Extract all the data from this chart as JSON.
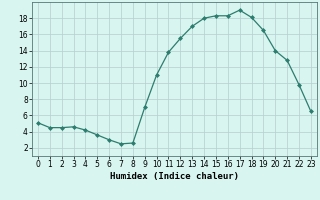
{
  "x": [
    0,
    1,
    2,
    3,
    4,
    5,
    6,
    7,
    8,
    9,
    10,
    11,
    12,
    13,
    14,
    15,
    16,
    17,
    18,
    19,
    20,
    21,
    22,
    23
  ],
  "y": [
    5.1,
    4.5,
    4.5,
    4.6,
    4.2,
    3.6,
    3.0,
    2.5,
    2.6,
    7.0,
    11.0,
    13.8,
    15.5,
    17.0,
    18.0,
    18.3,
    18.3,
    19.0,
    18.1,
    16.5,
    14.0,
    12.8,
    9.8,
    6.5
  ],
  "line_color": "#2d7d6e",
  "marker": "D",
  "marker_size": 2.0,
  "linewidth": 0.9,
  "bg_color": "#d8f5f0",
  "grid_color": "#b5cece",
  "xlabel": "Humidex (Indice chaleur)",
  "xlabel_fontsize": 6.5,
  "xlim": [
    -0.5,
    23.5
  ],
  "ylim": [
    1.0,
    20.0
  ],
  "yticks": [
    2,
    4,
    6,
    8,
    10,
    12,
    14,
    16,
    18
  ],
  "xticks": [
    0,
    1,
    2,
    3,
    4,
    5,
    6,
    7,
    8,
    9,
    10,
    11,
    12,
    13,
    14,
    15,
    16,
    17,
    18,
    19,
    20,
    21,
    22,
    23
  ],
  "tick_fontsize": 5.5
}
